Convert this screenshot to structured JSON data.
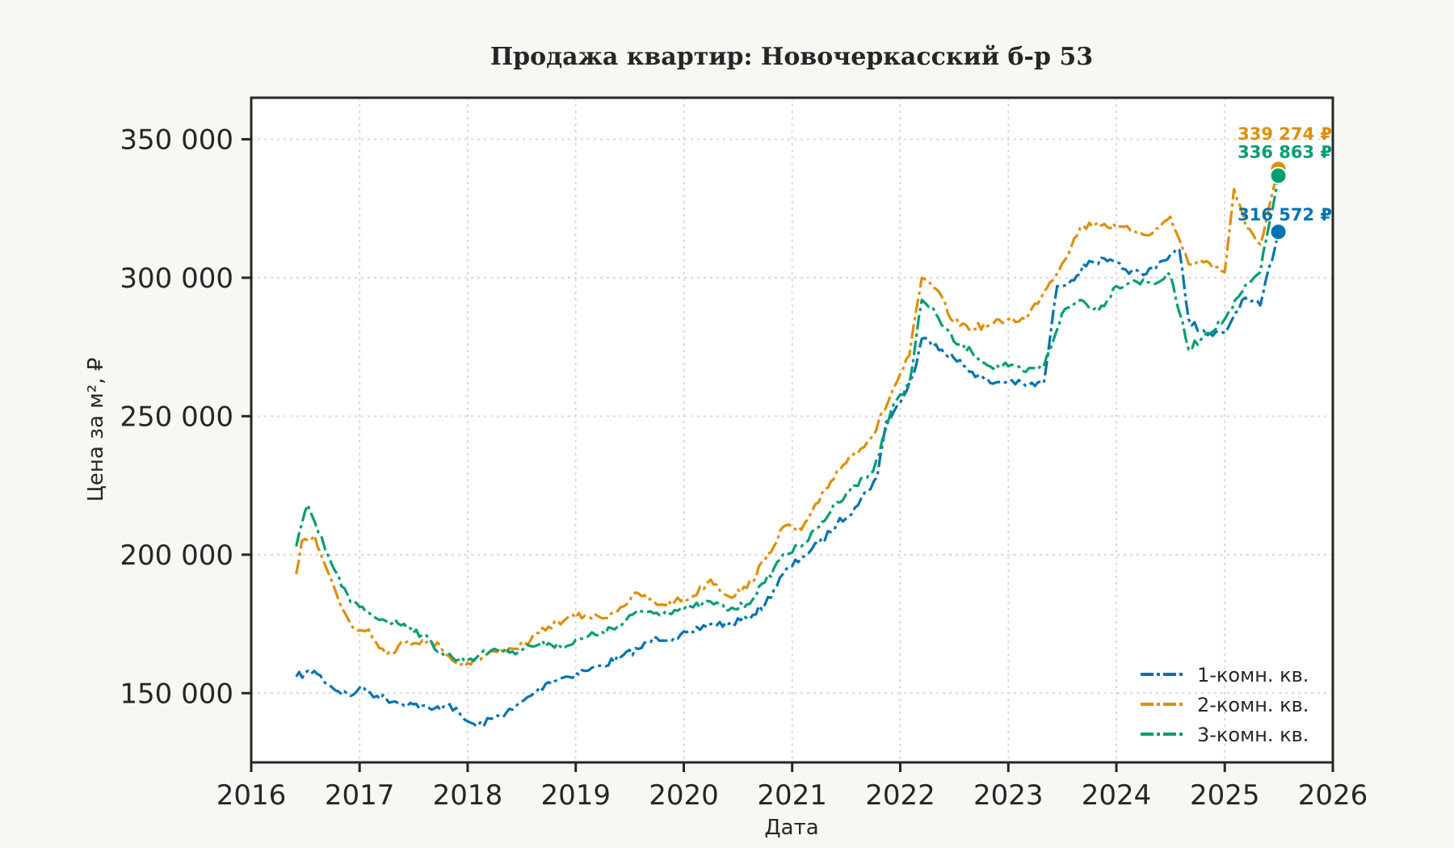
{
  "chart_data": {
    "type": "line",
    "title": "Продажа квартир: Новочеркасский б-р 53",
    "xlabel": "Дата",
    "ylabel": "Цена за м², ₽",
    "xlim": [
      "2016-01-01",
      "2026-01-01"
    ],
    "ylim": [
      125000,
      365000
    ],
    "x_ticks": [
      "2016",
      "2017",
      "2018",
      "2019",
      "2020",
      "2021",
      "2022",
      "2023",
      "2024",
      "2025",
      "2026"
    ],
    "y_ticks": [
      150000,
      200000,
      250000,
      300000,
      350000
    ],
    "y_tick_labels": [
      "150 000",
      "200 000",
      "250 000",
      "300 000",
      "350 000"
    ],
    "grid": true,
    "legend_position": "bottom-right",
    "series": [
      {
        "name": "1-комн. кв.",
        "color": "#0173b2",
        "dash": "dashdot",
        "marker": "left-triangle",
        "end_label": "316 572 ₽",
        "end_value": 316572,
        "points": [
          [
            "2016-06-01",
            156000
          ],
          [
            "2016-08-01",
            158000
          ],
          [
            "2016-10-01",
            152000
          ],
          [
            "2016-12-01",
            149000
          ],
          [
            "2017-01-01",
            152000
          ],
          [
            "2017-03-01",
            149000
          ],
          [
            "2017-05-01",
            147000
          ],
          [
            "2017-07-01",
            146000
          ],
          [
            "2017-09-01",
            144000
          ],
          [
            "2017-11-01",
            146000
          ],
          [
            "2017-12-15",
            141000
          ],
          [
            "2018-02-01",
            138000
          ],
          [
            "2018-04-01",
            141000
          ],
          [
            "2018-06-01",
            144000
          ],
          [
            "2018-08-01",
            149000
          ],
          [
            "2018-10-01",
            154000
          ],
          [
            "2018-12-01",
            156000
          ],
          [
            "2019-02-01",
            158000
          ],
          [
            "2019-04-01",
            160000
          ],
          [
            "2019-06-01",
            163000
          ],
          [
            "2019-08-01",
            166000
          ],
          [
            "2019-10-01",
            170000
          ],
          [
            "2019-12-01",
            170000
          ],
          [
            "2020-02-01",
            172000
          ],
          [
            "2020-04-01",
            175000
          ],
          [
            "2020-06-01",
            175000
          ],
          [
            "2020-08-01",
            177000
          ],
          [
            "2020-10-01",
            182000
          ],
          [
            "2020-12-01",
            193000
          ],
          [
            "2021-02-01",
            199000
          ],
          [
            "2021-04-01",
            204000
          ],
          [
            "2021-06-01",
            211000
          ],
          [
            "2021-08-01",
            217000
          ],
          [
            "2021-10-15",
            228000
          ],
          [
            "2021-11-15",
            248000
          ],
          [
            "2022-01-01",
            255000
          ],
          [
            "2022-02-15",
            265000
          ],
          [
            "2022-03-15",
            278000
          ],
          [
            "2022-05-01",
            276000
          ],
          [
            "2022-07-01",
            271000
          ],
          [
            "2022-09-01",
            266000
          ],
          [
            "2022-11-01",
            262000
          ],
          [
            "2023-01-01",
            263000
          ],
          [
            "2023-03-01",
            261000
          ],
          [
            "2023-05-01",
            262000
          ],
          [
            "2023-06-15",
            297000
          ],
          [
            "2023-08-01",
            299000
          ],
          [
            "2023-10-01",
            306000
          ],
          [
            "2023-12-01",
            306000
          ],
          [
            "2024-02-01",
            303000
          ],
          [
            "2024-04-01",
            301000
          ],
          [
            "2024-06-01",
            306000
          ],
          [
            "2024-08-01",
            310000
          ],
          [
            "2024-09-01",
            285000
          ],
          [
            "2024-11-01",
            279000
          ],
          [
            "2025-01-01",
            280000
          ],
          [
            "2025-03-01",
            292000
          ],
          [
            "2025-05-01",
            290000
          ],
          [
            "2025-07-01",
            316572
          ]
        ]
      },
      {
        "name": "2-комн. кв.",
        "color": "#de8f05",
        "dash": "dashdot",
        "marker": "point",
        "end_label": "339 274 ₽",
        "end_value": 339274,
        "points": [
          [
            "2016-06-01",
            193000
          ],
          [
            "2016-06-20",
            205000
          ],
          [
            "2016-08-01",
            207000
          ],
          [
            "2016-09-15",
            194000
          ],
          [
            "2016-11-01",
            181000
          ],
          [
            "2016-12-15",
            173000
          ],
          [
            "2017-02-01",
            173000
          ],
          [
            "2017-04-01",
            164000
          ],
          [
            "2017-06-01",
            168000
          ],
          [
            "2017-08-01",
            169000
          ],
          [
            "2017-10-01",
            167000
          ],
          [
            "2017-12-01",
            160000
          ],
          [
            "2018-02-01",
            162000
          ],
          [
            "2018-04-01",
            165000
          ],
          [
            "2018-06-01",
            166000
          ],
          [
            "2018-08-01",
            169000
          ],
          [
            "2018-10-01",
            174000
          ],
          [
            "2018-12-01",
            177000
          ],
          [
            "2019-02-01",
            178000
          ],
          [
            "2019-04-01",
            177000
          ],
          [
            "2019-06-01",
            181000
          ],
          [
            "2019-08-01",
            186000
          ],
          [
            "2019-10-01",
            182000
          ],
          [
            "2019-12-01",
            183000
          ],
          [
            "2020-02-01",
            185000
          ],
          [
            "2020-04-01",
            191000
          ],
          [
            "2020-06-01",
            185000
          ],
          [
            "2020-08-01",
            188000
          ],
          [
            "2020-10-01",
            198000
          ],
          [
            "2020-12-01",
            210000
          ],
          [
            "2021-02-01",
            209000
          ],
          [
            "2021-04-01",
            219000
          ],
          [
            "2021-06-01",
            230000
          ],
          [
            "2021-08-01",
            237000
          ],
          [
            "2021-10-01",
            243000
          ],
          [
            "2021-12-01",
            258000
          ],
          [
            "2022-02-01",
            272000
          ],
          [
            "2022-03-15",
            300000
          ],
          [
            "2022-05-01",
            296000
          ],
          [
            "2022-07-01",
            284000
          ],
          [
            "2022-09-01",
            282000
          ],
          [
            "2022-11-01",
            283000
          ],
          [
            "2023-01-01",
            285000
          ],
          [
            "2023-03-01",
            285000
          ],
          [
            "2023-05-01",
            295000
          ],
          [
            "2023-07-01",
            305000
          ],
          [
            "2023-09-01",
            318000
          ],
          [
            "2023-11-01",
            320000
          ],
          [
            "2024-01-01",
            318000
          ],
          [
            "2024-03-01",
            317000
          ],
          [
            "2024-05-01",
            316000
          ],
          [
            "2024-07-01",
            322000
          ],
          [
            "2024-09-01",
            305000
          ],
          [
            "2024-11-01",
            306000
          ],
          [
            "2025-01-01",
            302000
          ],
          [
            "2025-02-01",
            332000
          ],
          [
            "2025-03-15",
            318000
          ],
          [
            "2025-05-01",
            312000
          ],
          [
            "2025-07-01",
            339274
          ]
        ]
      },
      {
        "name": "3-комн. кв.",
        "color": "#029e73",
        "dash": "dashdot",
        "marker": "none",
        "end_label": "336 863 ₽",
        "end_value": 336863,
        "points": [
          [
            "2016-06-01",
            203000
          ],
          [
            "2016-07-10",
            218000
          ],
          [
            "2016-08-15",
            208000
          ],
          [
            "2016-10-01",
            196000
          ],
          [
            "2016-12-01",
            183000
          ],
          [
            "2017-02-01",
            179000
          ],
          [
            "2017-04-01",
            176000
          ],
          [
            "2017-06-01",
            175000
          ],
          [
            "2017-08-01",
            171000
          ],
          [
            "2017-10-01",
            165000
          ],
          [
            "2017-12-01",
            162000
          ],
          [
            "2018-02-01",
            163000
          ],
          [
            "2018-04-01",
            166000
          ],
          [
            "2018-06-01",
            165000
          ],
          [
            "2018-08-01",
            167000
          ],
          [
            "2018-10-01",
            168000
          ],
          [
            "2018-12-01",
            167000
          ],
          [
            "2019-02-01",
            170000
          ],
          [
            "2019-04-01",
            172000
          ],
          [
            "2019-06-01",
            174000
          ],
          [
            "2019-08-01",
            180000
          ],
          [
            "2019-10-01",
            179000
          ],
          [
            "2019-12-01",
            180000
          ],
          [
            "2020-02-01",
            181000
          ],
          [
            "2020-04-01",
            183000
          ],
          [
            "2020-06-01",
            180000
          ],
          [
            "2020-08-01",
            182000
          ],
          [
            "2020-10-01",
            190000
          ],
          [
            "2020-12-01",
            200000
          ],
          [
            "2021-02-01",
            203000
          ],
          [
            "2021-04-01",
            210000
          ],
          [
            "2021-06-01",
            219000
          ],
          [
            "2021-08-01",
            225000
          ],
          [
            "2021-10-01",
            230000
          ],
          [
            "2021-12-01",
            252000
          ],
          [
            "2022-02-01",
            262000
          ],
          [
            "2022-03-15",
            292000
          ],
          [
            "2022-05-01",
            287000
          ],
          [
            "2022-07-01",
            277000
          ],
          [
            "2022-09-01",
            273000
          ],
          [
            "2022-11-01",
            268000
          ],
          [
            "2023-01-01",
            268000
          ],
          [
            "2023-03-01",
            266000
          ],
          [
            "2023-05-01",
            268000
          ],
          [
            "2023-07-01",
            287000
          ],
          [
            "2023-09-01",
            292000
          ],
          [
            "2023-11-01",
            288000
          ],
          [
            "2024-01-01",
            297000
          ],
          [
            "2024-03-01",
            299000
          ],
          [
            "2024-05-01",
            298000
          ],
          [
            "2024-07-01",
            301000
          ],
          [
            "2024-09-01",
            274000
          ],
          [
            "2024-11-01",
            280000
          ],
          [
            "2025-01-01",
            285000
          ],
          [
            "2025-03-01",
            295000
          ],
          [
            "2025-05-01",
            302000
          ],
          [
            "2025-07-01",
            336863
          ]
        ]
      }
    ]
  }
}
